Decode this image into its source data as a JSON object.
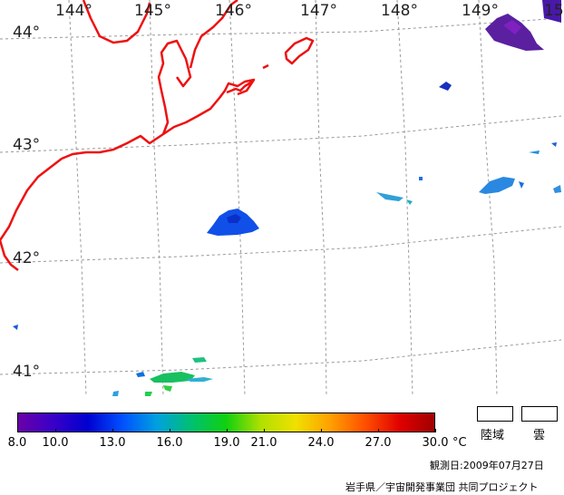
{
  "map": {
    "longitude_labels": [
      "144°",
      "145°",
      "146°",
      "147°",
      "148°",
      "149°",
      "15"
    ],
    "latitude_labels": [
      "44°",
      "43°",
      "42°",
      "41°"
    ],
    "coastline_color": "#ee1111",
    "grid_color": "#999999"
  },
  "colorbar": {
    "ticks": [
      "8.0",
      "10.0",
      "13.0",
      "16.0",
      "19.0",
      "21.0",
      "24.0",
      "27.0",
      "30.0"
    ],
    "tick_values": [
      8.0,
      10.0,
      13.0,
      16.0,
      19.0,
      21.0,
      24.0,
      27.0,
      30.0
    ],
    "min": 8.0,
    "max": 30.0,
    "unit": "°C",
    "colors": [
      "#6a00a8",
      "#3a00c8",
      "#0000d0",
      "#0050ff",
      "#00a0e0",
      "#00c070",
      "#10d010",
      "#b0e000",
      "#f0e000",
      "#ffa000",
      "#ff5000",
      "#e00000",
      "#a00000"
    ]
  },
  "legend": {
    "land_label": "陸域",
    "cloud_label": "雲"
  },
  "observation_date": "観測日:2009年07月27日",
  "credit": "岩手県／宇宙開発事業団 共同プロジェクト"
}
